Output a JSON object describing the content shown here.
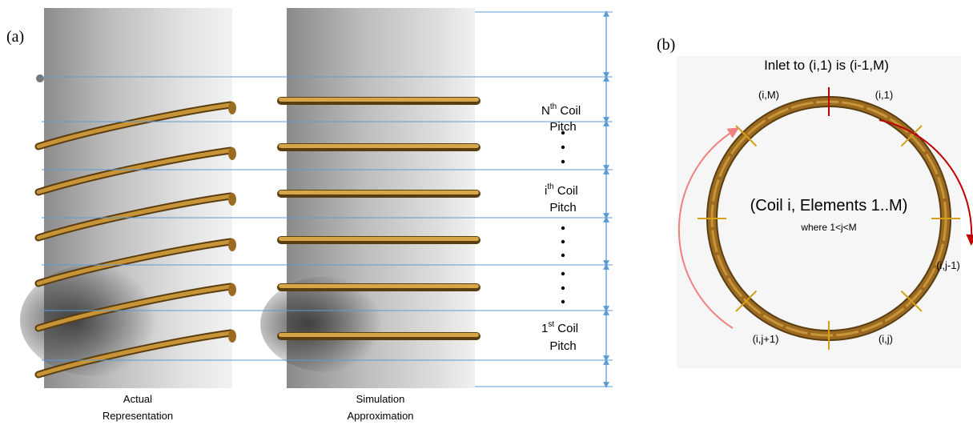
{
  "panel_a": {
    "label": "(a)",
    "left_cylinder_caption": [
      "Actual",
      "Representation"
    ],
    "right_cylinder_caption": [
      "Simulation",
      "Approximation"
    ],
    "pitch_labels": [
      {
        "sup_prefix": "N",
        "sup": "th",
        "rest": " Coil",
        "line2": "Pitch"
      },
      {
        "sup_prefix": "i",
        "sup": "th",
        "rest": " Coil",
        "line2": "Pitch"
      },
      {
        "sup_prefix": "1",
        "sup": "st",
        "rest": " Coil",
        "line2": "Pitch"
      }
    ],
    "ellipsis": "•",
    "colors": {
      "coil": "#b8862a",
      "dimension": "#5b9bd5"
    }
  },
  "panel_b": {
    "label": "(b)",
    "inlet_text": "Inlet to (i,1) is (i-1,M)",
    "center_title": "(Coil i, Elements 1..M)",
    "center_subtitle": "where 1<j<M",
    "element_labels": [
      "(i,M)",
      "(i,1)",
      "(i,j-1)",
      "(i,j)",
      "(i,j+1)"
    ],
    "colors": {
      "ring": "#8b5e1a",
      "tick": "#d4a017",
      "inlet_tick": "#c00000",
      "arrow_right": "#c00000",
      "arrow_left": "#f08080"
    }
  }
}
